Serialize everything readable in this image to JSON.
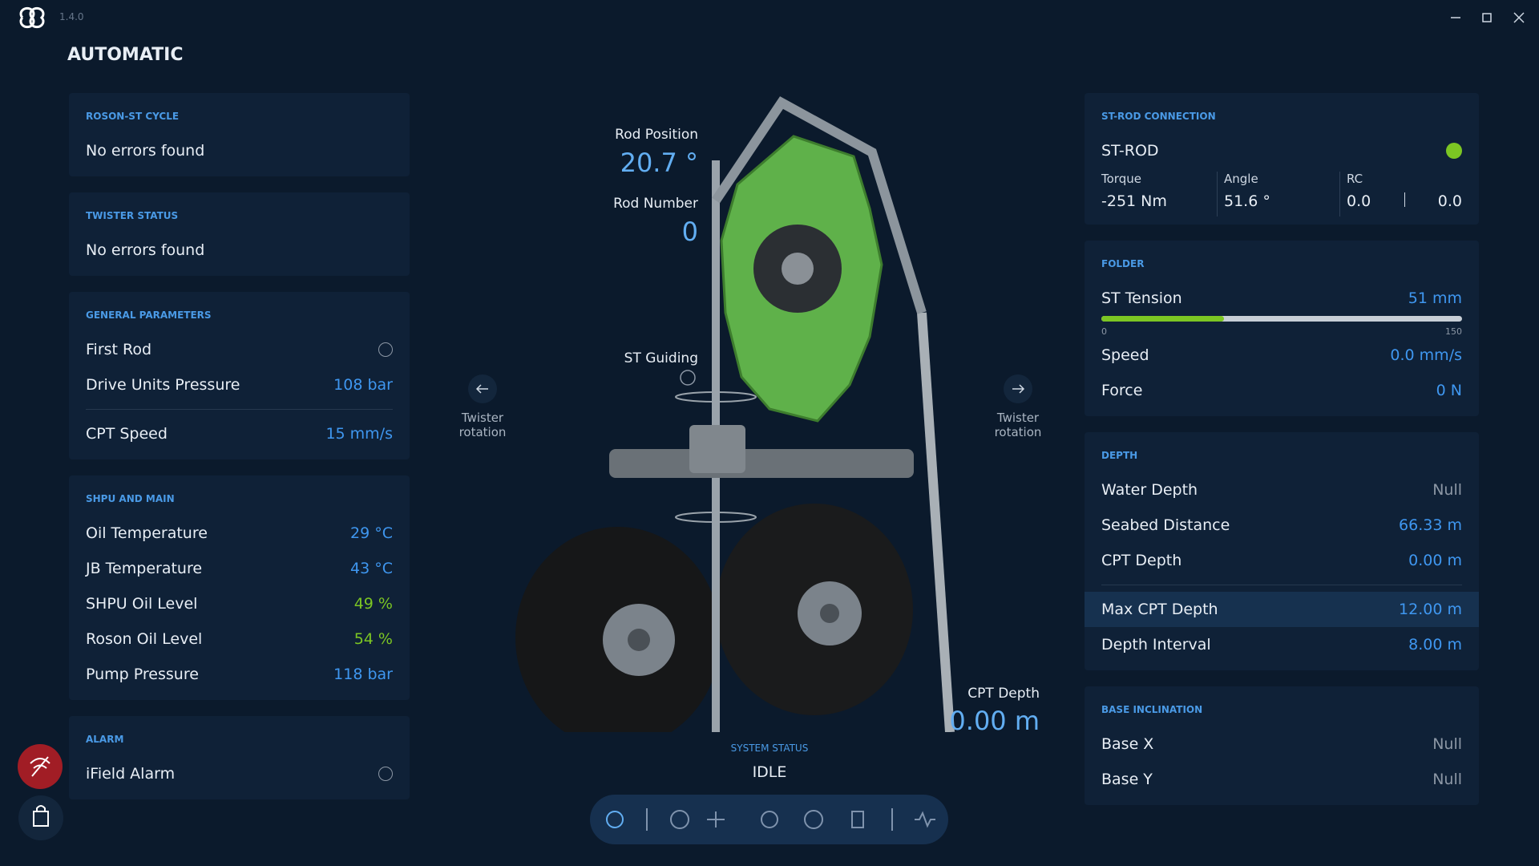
{
  "app": {
    "version": "1.4.0"
  },
  "header": {
    "title": "AUTOMATIC"
  },
  "left_panels": [
    {
      "title": "ROSON-ST CYCLE",
      "groups": [
        [
          {
            "label": "No errors found"
          }
        ]
      ]
    },
    {
      "title": "TWISTER STATUS",
      "groups": [
        [
          {
            "label": "No errors found"
          }
        ]
      ]
    },
    {
      "title": "GENERAL PARAMETERS",
      "groups": [
        [
          {
            "label": "First Rod",
            "checked": false
          },
          {
            "label": "Drive Units Pressure",
            "value": "108 bar",
            "color": "#3f97f0"
          }
        ],
        [
          {
            "label": "CPT Speed",
            "value": "15 mm/s",
            "color": "#3f97f0"
          }
        ]
      ]
    },
    {
      "title": "SHPU AND MAIN",
      "groups": [
        [
          {
            "label": "Oil Temperature",
            "value": "29 °C",
            "color": "#3f97f0"
          },
          {
            "label": "JB Temperature",
            "value": "43 °C",
            "color": "#3f97f0"
          },
          {
            "label": "SHPU Oil Level",
            "value": "49 %",
            "color": "#7cc623"
          },
          {
            "label": "Roson Oil Level",
            "value": "54 %",
            "color": "#7cc623"
          },
          {
            "label": "Pump Pressure",
            "value": "118 bar",
            "color": "#3f97f0"
          }
        ]
      ]
    },
    {
      "title": "ALARM",
      "groups": [
        [
          {
            "label": "iField Alarm",
            "checked": false
          }
        ]
      ]
    }
  ],
  "st_rod": {
    "title": "ST-ROD CONNECTION",
    "name": "ST-ROD",
    "status_color": "#7cc623",
    "readings": [
      {
        "label": "Torque",
        "values": [
          "-251 Nm"
        ]
      },
      {
        "label": "Angle",
        "values": [
          "51.6 °"
        ]
      },
      {
        "label": "RC",
        "values": [
          "0.0",
          "0.0"
        ]
      }
    ]
  },
  "folder": {
    "title": "FOLDER",
    "gauge": {
      "label": "ST Tension",
      "value_label": "51 mm",
      "value": 51,
      "min": 0,
      "max": 150,
      "color": "#7cc623"
    },
    "groups": [
      [
        {
          "label": "Speed",
          "value": "0.0 mm/s",
          "color": "#3f97f0"
        },
        {
          "label": "Force",
          "value": "0 N",
          "color": "#3f97f0"
        }
      ]
    ]
  },
  "right_panels": [
    {
      "title": "DEPTH",
      "groups": [
        [
          {
            "label": "Water Depth",
            "value": "Null",
            "color": "#8c97a5"
          },
          {
            "label": "Seabed Distance",
            "value": "66.33 m",
            "color": "#3f97f0"
          },
          {
            "label": "CPT Depth",
            "value": "0.00 m",
            "color": "#3f97f0"
          }
        ],
        [
          {
            "label": "Max CPT Depth",
            "value": "12.00 m",
            "color": "#3f97f0",
            "selected": true
          },
          {
            "label": "Depth Interval",
            "value": "8.00 m",
            "color": "#3f97f0"
          }
        ]
      ]
    },
    {
      "title": "BASE INCLINATION",
      "groups": [
        [
          {
            "label": "Base X",
            "value": "Null",
            "color": "#8c97a5"
          },
          {
            "label": "Base Y",
            "value": "Null",
            "color": "#8c97a5"
          }
        ]
      ]
    }
  ],
  "center": {
    "rod_position": {
      "label": "Rod Position",
      "value": "20.7 °"
    },
    "rod_number": {
      "label": "Rod Number",
      "value": "0"
    },
    "st_guiding": {
      "label": "ST Guiding"
    },
    "twister_left": {
      "label": "Twister rotation"
    },
    "twister_right": {
      "label": "Twister rotation"
    },
    "cpt_depth": {
      "label": "CPT Depth",
      "value": "0.00 m"
    },
    "system_status": {
      "label": "SYSTEM STATUS",
      "value": "IDLE"
    }
  }
}
